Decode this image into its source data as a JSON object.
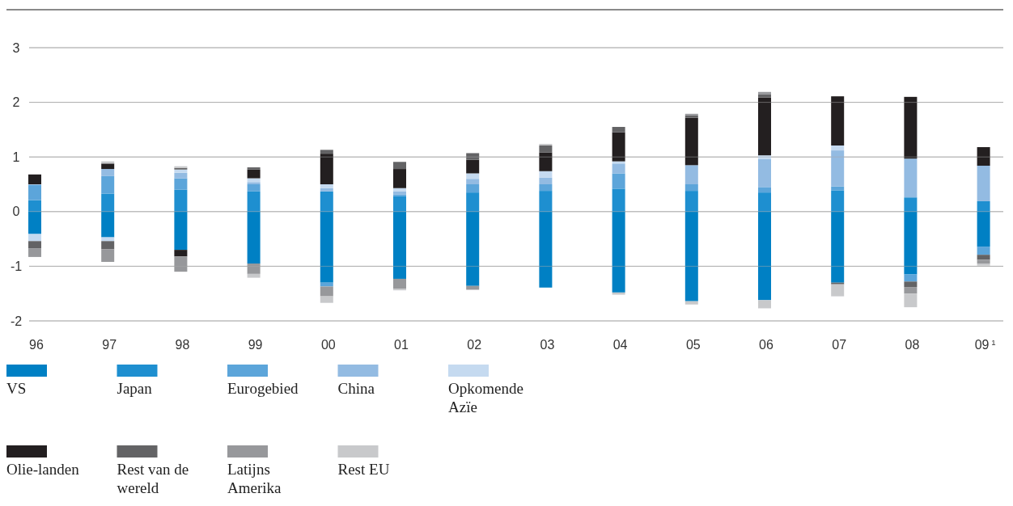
{
  "chart_data": {
    "type": "bar",
    "stacked": true,
    "categories": [
      "96",
      "97",
      "98",
      "99",
      "00",
      "01",
      "02",
      "03",
      "04",
      "05",
      "06",
      "07",
      "08",
      "09$^{1}$"
    ],
    "series": [
      {
        "name": "VS",
        "color": "#0080c4",
        "values": [
          -0.41,
          -0.47,
          -0.7,
          -0.95,
          -1.3,
          -1.23,
          -1.36,
          -1.39,
          -1.48,
          -1.64,
          -1.62,
          -1.3,
          -1.15,
          -0.64
        ]
      },
      {
        "name": "Japan",
        "color": "#1e8fd0",
        "values": [
          0.21,
          0.33,
          0.4,
          0.37,
          0.37,
          0.28,
          0.35,
          0.38,
          0.42,
          0.38,
          0.35,
          0.39,
          0.26,
          0.19
        ]
      },
      {
        "name": "Eurogebied",
        "color": "#5ca5da",
        "values": [
          0.28,
          0.32,
          0.21,
          0.13,
          -0.07,
          0.03,
          0.15,
          0.12,
          0.28,
          0.12,
          0.1,
          0.07,
          -0.13,
          -0.15
        ]
      },
      {
        "name": "China",
        "color": "#93bbe2",
        "values": [
          0.01,
          0.13,
          0.1,
          0.04,
          0.06,
          0.06,
          0.1,
          0.12,
          0.18,
          0.35,
          0.51,
          0.66,
          0.71,
          0.65
        ]
      },
      {
        "name": "Opkomende Azïe",
        "color": "#c5daf0",
        "values": [
          -0.13,
          -0.07,
          0.06,
          0.07,
          0.07,
          0.06,
          0.1,
          0.12,
          0.04,
          null,
          0.07,
          0.09,
          null,
          null
        ]
      },
      {
        "name": "Olie-landen",
        "color": "#231f20",
        "values": [
          0.18,
          0.1,
          -0.12,
          0.16,
          0.56,
          0.35,
          0.25,
          0.34,
          0.53,
          0.87,
          1.06,
          0.9,
          1.13,
          0.34
        ]
      },
      {
        "name": "Rest van de wereld",
        "color": "#636365",
        "values": [
          -0.13,
          -0.15,
          0.03,
          0.04,
          0.07,
          0.13,
          0.12,
          0.13,
          0.1,
          0.04,
          0.06,
          -0.03,
          -0.1,
          -0.09
        ]
      },
      {
        "name": "Latijns Amerika",
        "color": "#97989b",
        "values": [
          -0.16,
          -0.23,
          -0.28,
          -0.19,
          -0.18,
          -0.18,
          -0.07,
          null,
          null,
          0.03,
          0.04,
          null,
          -0.12,
          -0.07
        ]
      },
      {
        "name": "Rest EU",
        "color": "#c8c9cb",
        "values": [
          null,
          0.04,
          0.03,
          -0.07,
          -0.12,
          -0.03,
          null,
          0.03,
          -0.04,
          -0.06,
          -0.15,
          -0.22,
          -0.25,
          -0.04
        ]
      }
    ],
    "ylim": [
      -2,
      3
    ],
    "yticks": [
      -2,
      -1,
      0,
      1,
      2,
      3
    ],
    "grid": "y",
    "legend": "bottom"
  }
}
